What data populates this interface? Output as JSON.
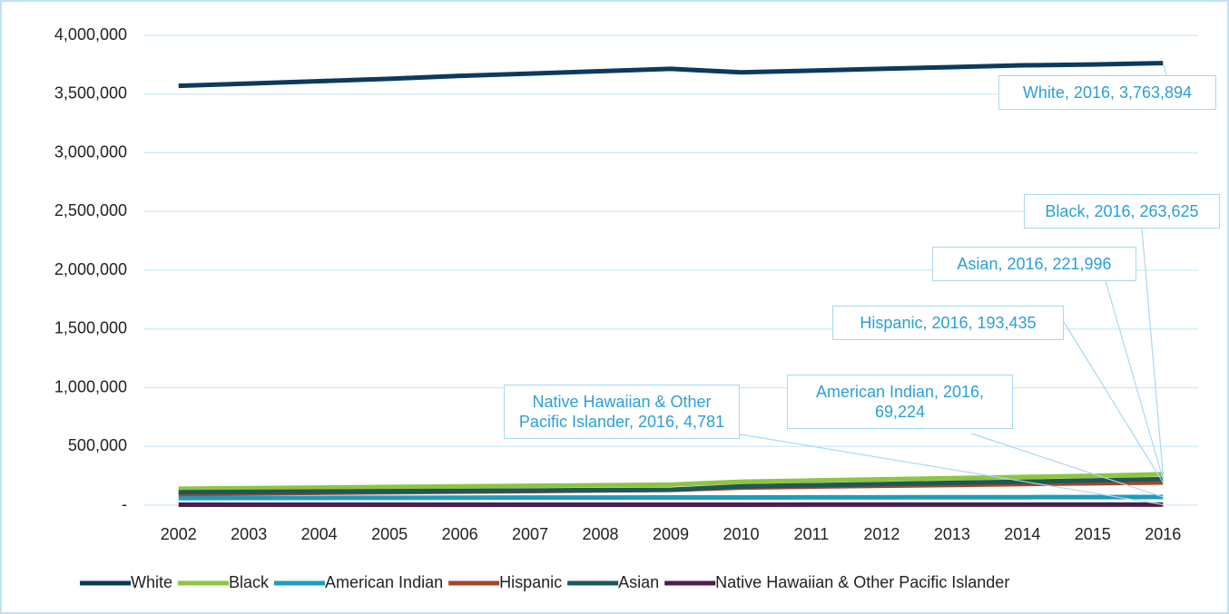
{
  "chart_data": {
    "type": "line",
    "categories": [
      "2002",
      "2003",
      "2004",
      "2005",
      "2006",
      "2007",
      "2008",
      "2009",
      "2010",
      "2011",
      "2012",
      "2013",
      "2014",
      "2015",
      "2016"
    ],
    "ylim": [
      0,
      4000000
    ],
    "yticks": [
      {
        "value": 0,
        "label": "-"
      },
      {
        "value": 500000,
        "label": "500,000"
      },
      {
        "value": 1000000,
        "label": "1,000,000"
      },
      {
        "value": 1500000,
        "label": "1,500,000"
      },
      {
        "value": 2000000,
        "label": "2,000,000"
      },
      {
        "value": 2500000,
        "label": "2,500,000"
      },
      {
        "value": 3000000,
        "label": "3,000,000"
      },
      {
        "value": 3500000,
        "label": "3,500,000"
      },
      {
        "value": 4000000,
        "label": "4,000,000"
      }
    ],
    "grid": true,
    "legend": "bottom",
    "series": [
      {
        "name": "White",
        "color": "#0c3a5e",
        "values": [
          3570000,
          3590000,
          3610000,
          3630000,
          3655000,
          3675000,
          3695000,
          3715000,
          3685000,
          3700000,
          3715000,
          3730000,
          3745000,
          3752000,
          3763894
        ],
        "value_labels": [
          null,
          null,
          null,
          null,
          null,
          null,
          null,
          null,
          null,
          null,
          null,
          null,
          null,
          null,
          "White, 2016,  3,763,894"
        ]
      },
      {
        "name": "Black",
        "color": "#8dc63f",
        "values": [
          140000,
          145000,
          150000,
          155000,
          160000,
          165000,
          170000,
          175000,
          200000,
          210000,
          220000,
          230000,
          240000,
          250000,
          263625
        ],
        "value_labels": [
          null,
          null,
          null,
          null,
          null,
          null,
          null,
          null,
          null,
          null,
          null,
          null,
          null,
          null,
          "Black, 2016,  263,625"
        ]
      },
      {
        "name": "American Indian",
        "color": "#1b9cc0",
        "values": [
          60000,
          61000,
          62000,
          63000,
          64000,
          64500,
          65000,
          65500,
          66000,
          66500,
          67000,
          67500,
          68000,
          68500,
          69224
        ],
        "value_labels": [
          null,
          null,
          null,
          null,
          null,
          null,
          null,
          null,
          null,
          null,
          null,
          null,
          null,
          null,
          "American Indian, 2016,  69,224"
        ]
      },
      {
        "name": "Hispanic",
        "color": "#a4472a",
        "values": [
          95000,
          100000,
          105000,
          110000,
          115000,
          120000,
          125000,
          130000,
          150000,
          158000,
          165000,
          172000,
          180000,
          186000,
          193435
        ],
        "value_labels": [
          null,
          null,
          null,
          null,
          null,
          null,
          null,
          null,
          null,
          null,
          null,
          null,
          null,
          null,
          "Hispanic, 2016,  193,435"
        ]
      },
      {
        "name": "Asian",
        "color": "#1e5858",
        "values": [
          110000,
          113000,
          116000,
          119000,
          122000,
          125000,
          128000,
          131000,
          160000,
          170000,
          180000,
          190000,
          200000,
          210000,
          221996
        ],
        "value_labels": [
          null,
          null,
          null,
          null,
          null,
          null,
          null,
          null,
          null,
          null,
          null,
          null,
          null,
          null,
          "Asian, 2016,  221,996"
        ]
      },
      {
        "name": "Native Hawaiian & Other Pacific Islander",
        "color": "#4a1f4e",
        "values": [
          3800,
          3900,
          4000,
          4050,
          4100,
          4150,
          4200,
          4250,
          4300,
          4400,
          4450,
          4500,
          4600,
          4700,
          4781
        ],
        "value_labels": [
          null,
          null,
          null,
          null,
          null,
          null,
          null,
          null,
          null,
          null,
          null,
          null,
          null,
          null,
          "Native Hawaiian & Other Pacific Islander, 2016,  4,781"
        ]
      }
    ]
  }
}
